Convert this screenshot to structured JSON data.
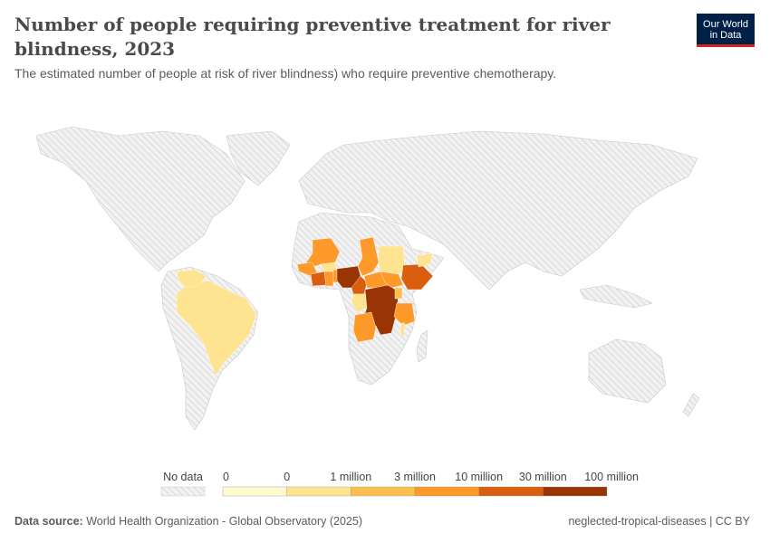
{
  "header": {
    "title": "Number of people requiring preventive treatment for river blindness, 2023",
    "subtitle": "The estimated number of people at risk of river blindness) who require preventive chemotherapy.",
    "logo_line1": "Our World",
    "logo_line2": "in Data"
  },
  "footer": {
    "source_label": "Data source:",
    "source": "World Health Organization - Global Observatory (2025)",
    "license": "neglected-tropical-diseases | CC BY"
  },
  "chart_data": {
    "type": "choropleth",
    "title": "Number of people requiring preventive treatment for river blindness, 2023",
    "legend": {
      "no_data_label": "No data",
      "no_data_color": "#e8e8e8",
      "tick_labels": [
        "0",
        "0",
        "1 million",
        "3 million",
        "10 million",
        "30 million",
        "100 million"
      ],
      "bin_colors": [
        "#fffbd0",
        "#fee391",
        "#fcbf4f",
        "#fd9a29",
        "#d95f0e",
        "#993404"
      ]
    },
    "countries": {
      "Brazil": 1,
      "Venezuela": 1,
      "Mali": 3,
      "Senegal-Guinea": 3,
      "Cote d'Ivoire": 4,
      "Burkina Faso": 1,
      "Ghana": 3,
      "Benin-Togo": 3,
      "Nigeria": 5,
      "Chad": 3,
      "Cameroon": 4,
      "Central African Republic": 3,
      "Sudan": 1,
      "South Sudan": 3,
      "Ethiopia": 4,
      "Yemen": 1,
      "Gabon-Congo": 1,
      "Democratic Republic of Congo": 5,
      "Uganda": 2,
      "Tanzania": 3,
      "Malawi": 1,
      "Angola": 3
    }
  }
}
